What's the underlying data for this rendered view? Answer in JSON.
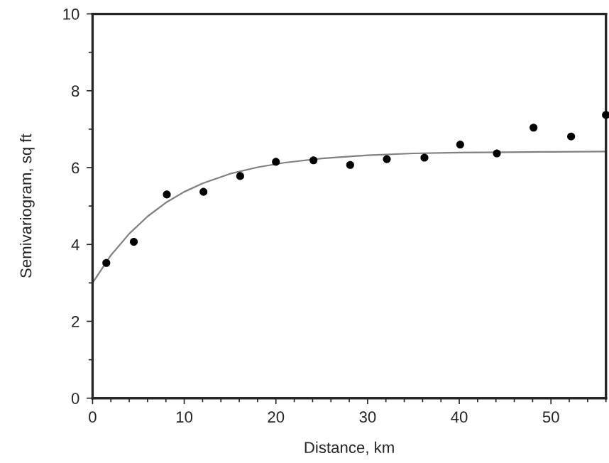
{
  "chart_data": {
    "type": "scatter",
    "xlabel": "Distance, km",
    "ylabel": "Semivariogram, sq ft",
    "xlim": [
      0,
      56
    ],
    "ylim": [
      0,
      10
    ],
    "xticks": [
      0,
      10,
      20,
      30,
      40,
      50
    ],
    "yticks": [
      0,
      2,
      4,
      6,
      8,
      10
    ],
    "grid": false,
    "series": [
      {
        "color": "#000000",
        "marker": "circle",
        "x": [
          1.5,
          4.5,
          8.1,
          12.1,
          16.1,
          20,
          24.1,
          28.1,
          32.1,
          36.2,
          40.1,
          44.1,
          48.1,
          52.2,
          56
        ],
        "values": [
          3.52,
          4.07,
          5.3,
          5.37,
          5.78,
          6.15,
          6.19,
          6.07,
          6.22,
          6.26,
          6.6,
          6.37,
          7.04,
          6.81,
          7.37
        ]
      },
      {
        "type": "line",
        "color": "#808080",
        "line_style": "solid",
        "marker": "none",
        "x": [
          0,
          2,
          4,
          6,
          8,
          10,
          12,
          15,
          18,
          21,
          25,
          30,
          35,
          40,
          45,
          50,
          56
        ],
        "values": [
          3.0,
          3.72,
          4.28,
          4.73,
          5.09,
          5.37,
          5.59,
          5.84,
          6.01,
          6.13,
          6.24,
          6.32,
          6.37,
          6.39,
          6.4,
          6.41,
          6.42
        ]
      }
    ]
  }
}
